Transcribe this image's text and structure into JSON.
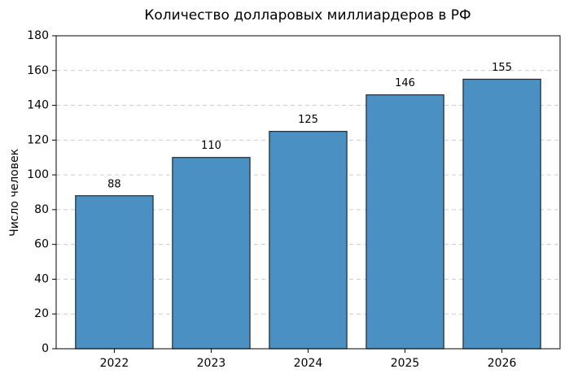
{
  "chart_data": {
    "type": "bar",
    "title": "Количество долларовых миллиардеров в РФ",
    "ylabel": "Число человек",
    "categories": [
      "2022",
      "2023",
      "2024",
      "2025",
      "2026"
    ],
    "values": [
      88,
      110,
      125,
      146,
      155
    ],
    "color": "#4a90c2",
    "ylim": [
      0,
      180
    ],
    "yticks": [
      0,
      20,
      40,
      60,
      80,
      100,
      120,
      140,
      160,
      180
    ],
    "grid": true
  }
}
